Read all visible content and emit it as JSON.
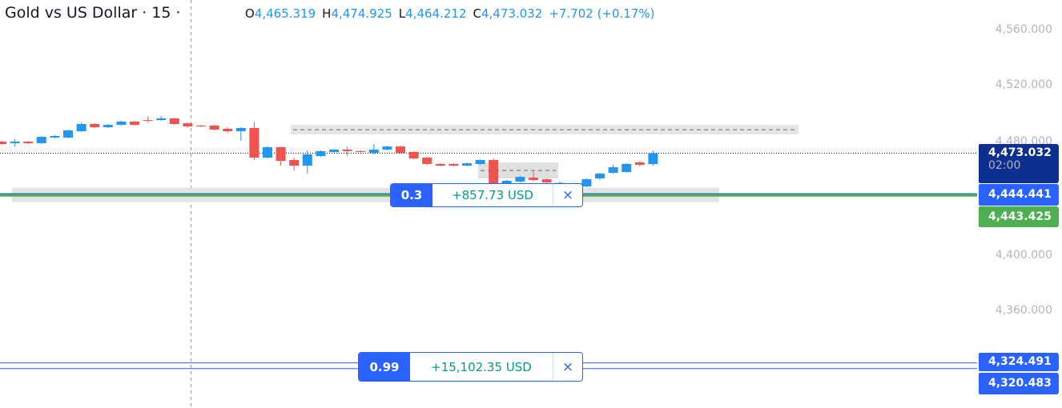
{
  "header": {
    "title": "Gold vs US Dollar · 15 ·",
    "o_label": "O",
    "o": "4,465.319",
    "h_label": "H",
    "h": "4,474.925",
    "l_label": "L",
    "l": "4,464.212",
    "c_label": "C",
    "c": "4,473.032",
    "change": "+7.702 (+0.17%)"
  },
  "axis": {
    "labels": [
      "4,560.000",
      "4,520.000",
      "4,480.000",
      "4,400.000",
      "4,360.000"
    ],
    "values": [
      4560,
      4520,
      4480,
      4400,
      4360
    ]
  },
  "price_tags": {
    "last": "4,473.032",
    "countdown": "02:00",
    "order1": "4,444.441",
    "green": "4,443.425",
    "order2": "4,324.491",
    "order3": "4,320.483"
  },
  "orders": [
    {
      "qty": "0.3",
      "pnl": "+857.73 USD",
      "close": "×"
    },
    {
      "qty": "0.99",
      "pnl": "+15,102.35 USD",
      "close": "×"
    }
  ],
  "colors": {
    "up": "#2196f3",
    "down": "#ef5350",
    "green": "#4caf50",
    "order": "#2962ff",
    "last_tag": "#0d2f8f"
  },
  "chart_data": {
    "type": "candlestick",
    "levels": {
      "last": 4473.032,
      "order1": 4444.441,
      "green": 4443.425,
      "order2": 4324.491,
      "order3": 4320.483,
      "dashed_upper": 4489.7,
      "dashed_small": 4460.8
    },
    "candles": [
      [
        4481.2,
        4481.8,
        4479.0,
        4479.5
      ],
      [
        4480.1,
        4482.9,
        4477.8,
        4481.2
      ],
      [
        4481.2,
        4481.8,
        4479.5,
        4480.1
      ],
      [
        4480.1,
        4485.2,
        4479.5,
        4484.6
      ],
      [
        4484.1,
        4486.0,
        4483.5,
        4485.2
      ],
      [
        4484.1,
        4489.7,
        4483.5,
        4489.2
      ],
      [
        4488.6,
        4494.8,
        4488.0,
        4493.7
      ],
      [
        4493.7,
        4494.2,
        4491.0,
        4491.4
      ],
      [
        4491.4,
        4493.7,
        4491.0,
        4493.1
      ],
      [
        4493.1,
        4496.0,
        4492.6,
        4495.4
      ],
      [
        4495.4,
        4496.0,
        4492.6,
        4493.1
      ],
      [
        4496.5,
        4498.8,
        4494.8,
        4496.0
      ],
      [
        4496.5,
        4499.4,
        4496.0,
        4497.7
      ],
      [
        4497.7,
        4498.2,
        4493.1,
        4493.7
      ],
      [
        4494.2,
        4494.8,
        4491.4,
        4492.0
      ],
      [
        4492.6,
        4493.1,
        4491.4,
        4492.0
      ],
      [
        4492.6,
        4493.1,
        4489.2,
        4489.7
      ],
      [
        4490.3,
        4491.4,
        4487.5,
        4488.6
      ],
      [
        4488.6,
        4491.4,
        4481.8,
        4490.9
      ],
      [
        4490.9,
        4495.4,
        4468.2,
        4469.9
      ],
      [
        4469.9,
        4478.0,
        4469.3,
        4477.3
      ],
      [
        4477.3,
        4477.8,
        4464.2,
        4467.6
      ],
      [
        4468.2,
        4469.9,
        4460.8,
        4464.2
      ],
      [
        4464.2,
        4475.0,
        4458.6,
        4472.2
      ],
      [
        4471.0,
        4475.0,
        4470.4,
        4474.5
      ],
      [
        4473.9,
        4476.0,
        4473.3,
        4475.6
      ],
      [
        4475.6,
        4477.8,
        4471.0,
        4474.5
      ],
      [
        4474.5,
        4475.0,
        4473.3,
        4473.9
      ],
      [
        4473.3,
        4479.5,
        4472.2,
        4475.6
      ],
      [
        4475.6,
        4478.4,
        4475.0,
        4477.8
      ],
      [
        4477.8,
        4478.4,
        4472.7,
        4473.3
      ],
      [
        4473.9,
        4474.5,
        4468.7,
        4469.3
      ],
      [
        4469.9,
        4470.4,
        4464.8,
        4465.4
      ],
      [
        4465.4,
        4466.0,
        4463.7,
        4464.2
      ],
      [
        4465.4,
        4466.0,
        4463.7,
        4464.2
      ],
      [
        4464.2,
        4466.5,
        4463.7,
        4465.9
      ],
      [
        4465.4,
        4468.7,
        4464.8,
        4468.2
      ],
      [
        4468.2,
        4469.3,
        4446.0,
        4448.4
      ],
      [
        4451.8,
        4454.0,
        4451.2,
        4453.5
      ],
      [
        4452.9,
        4457.0,
        4452.3,
        4456.3
      ],
      [
        4455.7,
        4460.0,
        4453.0,
        4454.0
      ],
      [
        4454.6,
        4455.0,
        4451.8,
        4452.3
      ],
      [
        4450.0,
        4453.0,
        4449.0,
        4452.0
      ],
      [
        4450.0,
        4452.0,
        4448.0,
        4451.0
      ],
      [
        4449.5,
        4455.2,
        4448.9,
        4454.6
      ],
      [
        4455.2,
        4459.1,
        4454.0,
        4458.6
      ],
      [
        4459.1,
        4464.8,
        4458.6,
        4463.1
      ],
      [
        4459.7,
        4465.9,
        4459.1,
        4465.4
      ],
      [
        4466.5,
        4467.6,
        4463.7,
        4464.8
      ],
      [
        4465.319,
        4474.925,
        4464.212,
        4473.032
      ]
    ]
  }
}
